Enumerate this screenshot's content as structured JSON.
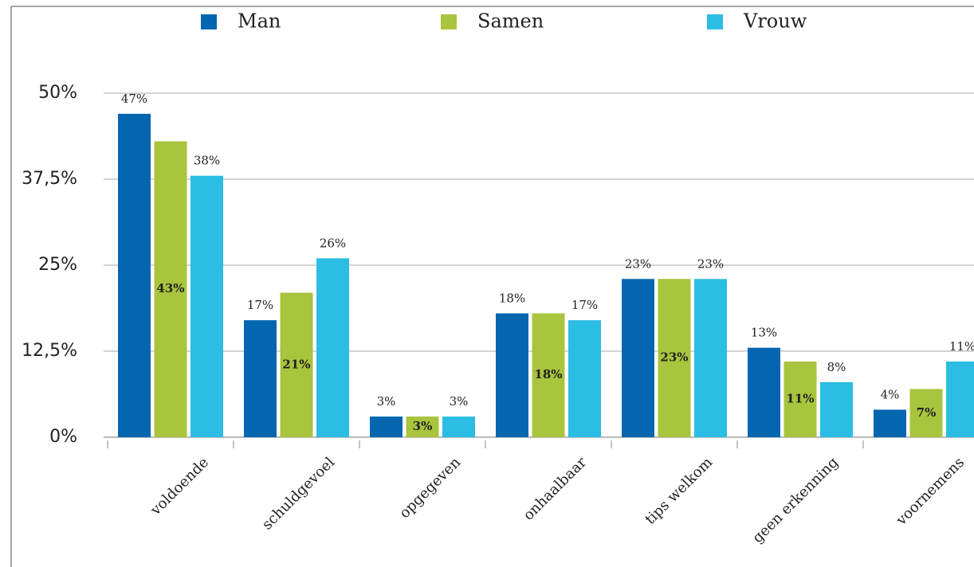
{
  "chart_data": {
    "type": "bar",
    "categories": [
      "voldoende",
      "schuldgevoel",
      "opgegeven",
      "onhaalbaar",
      "tips welkom",
      "geen erkenning",
      "voornemens"
    ],
    "series": [
      {
        "name": "Man",
        "color": "#0566b0",
        "values": [
          47,
          17,
          3,
          18,
          23,
          13,
          4
        ],
        "value_labels": [
          "47%",
          "17%",
          "3%",
          "18%",
          "23%",
          "13%",
          "4%"
        ]
      },
      {
        "name": "Samen",
        "color": "#a9c43d",
        "values": [
          43,
          21,
          3,
          18,
          23,
          11,
          7
        ],
        "value_labels": [
          "43%",
          "21%",
          "3%",
          "18%",
          "23%",
          "11%",
          "7%"
        ]
      },
      {
        "name": "Vrouw",
        "color": "#2bbde3",
        "values": [
          38,
          26,
          3,
          17,
          23,
          8,
          11
        ],
        "value_labels": [
          "38%",
          "26%",
          "3%",
          "17%",
          "23%",
          "8%",
          "11%"
        ]
      }
    ],
    "ylim": [
      0,
      50
    ],
    "yticks": [
      {
        "value": 0,
        "label": "0%"
      },
      {
        "value": 12.5,
        "label": "12,5%"
      },
      {
        "value": 25,
        "label": "25%"
      },
      {
        "value": 37.5,
        "label": "37,5%"
      },
      {
        "value": 50,
        "label": "50%"
      }
    ],
    "grid": true
  }
}
